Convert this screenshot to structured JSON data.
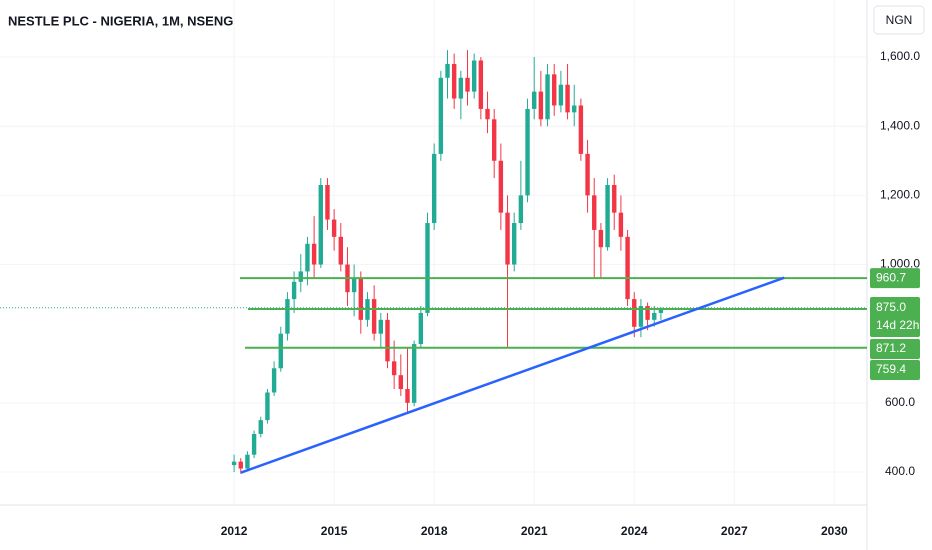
{
  "chart_data": {
    "type": "candlestick",
    "title": "NESTLE PLC - NIGERIA, 1M, NSENG",
    "currency": "NGN",
    "up_color": "#22ab94",
    "down_color": "#f23645",
    "x": [
      2012.0,
      2012.2,
      2012.4,
      2012.6,
      2012.8,
      2013.0,
      2013.2,
      2013.4,
      2013.6,
      2013.8,
      2014.0,
      2014.2,
      2014.4,
      2014.6,
      2014.8,
      2015.0,
      2015.2,
      2015.4,
      2015.6,
      2015.8,
      2016.0,
      2016.2,
      2016.4,
      2016.6,
      2016.8,
      2017.0,
      2017.2,
      2017.4,
      2017.6,
      2017.8,
      2018.0,
      2018.2,
      2018.4,
      2018.6,
      2018.8,
      2019.0,
      2019.2,
      2019.4,
      2019.6,
      2019.8,
      2020.0,
      2020.2,
      2020.4,
      2020.6,
      2020.8,
      2021.0,
      2021.2,
      2021.4,
      2021.6,
      2021.8,
      2022.0,
      2022.2,
      2022.4,
      2022.6,
      2022.8,
      2023.0,
      2023.2,
      2023.4,
      2023.6,
      2023.8,
      2024.0,
      2024.2,
      2024.4,
      2024.6,
      2024.8
    ],
    "open": [
      420,
      430,
      410,
      450,
      510,
      550,
      630,
      700,
      800,
      900,
      950,
      980,
      1060,
      1000,
      1230,
      1130,
      1080,
      1000,
      920,
      960,
      840,
      900,
      800,
      840,
      720,
      680,
      640,
      600,
      770,
      860,
      1120,
      1320,
      1540,
      1580,
      1480,
      1540,
      1500,
      1590,
      1450,
      1420,
      1300,
      1150,
      1000,
      1120,
      1200,
      1450,
      1500,
      1420,
      1550,
      1460,
      1520,
      1440,
      1460,
      1320,
      1200,
      1100,
      1050,
      1230,
      1150,
      1080,
      900,
      820,
      880,
      840,
      860
    ],
    "high": [
      450,
      440,
      460,
      520,
      560,
      640,
      720,
      820,
      920,
      980,
      1030,
      1080,
      1140,
      1250,
      1250,
      1160,
      1120,
      1050,
      1000,
      980,
      920,
      940,
      860,
      860,
      780,
      740,
      760,
      780,
      880,
      1150,
      1350,
      1560,
      1620,
      1610,
      1560,
      1620,
      1610,
      1600,
      1500,
      1450,
      1350,
      1200,
      1150,
      1300,
      1480,
      1600,
      1560,
      1580,
      1580,
      1560,
      1580,
      1520,
      1480,
      1360,
      1250,
      1120,
      1250,
      1260,
      1200,
      1100,
      920,
      900,
      890,
      880,
      870
    ],
    "low": [
      400,
      395,
      405,
      440,
      500,
      540,
      620,
      690,
      780,
      860,
      920,
      940,
      960,
      990,
      1100,
      1040,
      980,
      880,
      850,
      800,
      820,
      780,
      760,
      700,
      640,
      620,
      570,
      590,
      760,
      850,
      1100,
      1300,
      1480,
      1450,
      1420,
      1460,
      1480,
      1420,
      1380,
      1250,
      1100,
      760,
      980,
      1100,
      1180,
      1420,
      1400,
      1400,
      1430,
      1440,
      1420,
      1400,
      1300,
      1150,
      960,
      960,
      1040,
      1100,
      1040,
      880,
      790,
      790,
      810,
      820,
      840
    ],
    "close": [
      430,
      410,
      450,
      510,
      550,
      630,
      700,
      800,
      900,
      950,
      980,
      1060,
      1000,
      1230,
      1130,
      1080,
      1000,
      920,
      960,
      840,
      900,
      800,
      840,
      720,
      680,
      640,
      600,
      770,
      860,
      1120,
      1320,
      1540,
      1580,
      1480,
      1540,
      1500,
      1590,
      1450,
      1420,
      1300,
      1150,
      1000,
      1120,
      1200,
      1450,
      1500,
      1420,
      1550,
      1460,
      1520,
      1440,
      1460,
      1320,
      1200,
      1100,
      1050,
      1230,
      1150,
      1080,
      900,
      820,
      880,
      840,
      860,
      875
    ],
    "xlim": [
      2004.98,
      2030.92
    ],
    "ylim": [
      319,
      1765
    ],
    "xticks": [
      2012,
      2015,
      2018,
      2021,
      2024,
      2027,
      2030
    ],
    "yticks": [
      {
        "value": 400,
        "label": "400.0"
      },
      {
        "value": 600,
        "label": "600.0"
      },
      {
        "value": 1000,
        "label": "1,000.0"
      },
      {
        "value": 1200,
        "label": "1,200.0"
      },
      {
        "value": 1400,
        "label": "1,400.0"
      },
      {
        "value": 1600,
        "label": "1,600.0"
      }
    ],
    "price_lines": [
      960.7,
      871.2,
      759.4
    ],
    "price_line_color": "#4caf50",
    "last_price": {
      "value": 875,
      "label": "875.0"
    },
    "countdown": "14d 22h",
    "trendline": {
      "x": [
        2012.2,
        2028.5
      ],
      "y": [
        398,
        962
      ],
      "color": "#2962ff"
    }
  }
}
